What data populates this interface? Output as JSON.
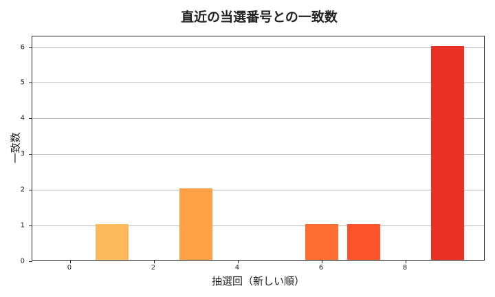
{
  "chart_data": {
    "type": "bar",
    "title": "直近の当選番号との一致数",
    "xlabel": "抽選回（新しい順）",
    "ylabel": "一致数",
    "x": [
      0,
      1,
      2,
      3,
      4,
      5,
      6,
      7,
      8,
      9
    ],
    "values": [
      0,
      1,
      0,
      2,
      0,
      0,
      1,
      1,
      0,
      6
    ],
    "colors": [
      "#ffd36b",
      "#feb95a",
      "#feab50",
      "#fea046",
      "#fd8d3c",
      "#fc7232",
      "#fd6c31",
      "#fc532b",
      "#f03b20",
      "#ea2f23"
    ],
    "xticks": [
      "0",
      "2",
      "4",
      "6",
      "8"
    ],
    "yticks": [
      "0",
      "1",
      "2",
      "3",
      "4",
      "5",
      "6"
    ],
    "xlim": [
      -0.9,
      9.9
    ],
    "ylim": [
      0,
      6.3
    ],
    "grid": "y",
    "legend": null
  }
}
